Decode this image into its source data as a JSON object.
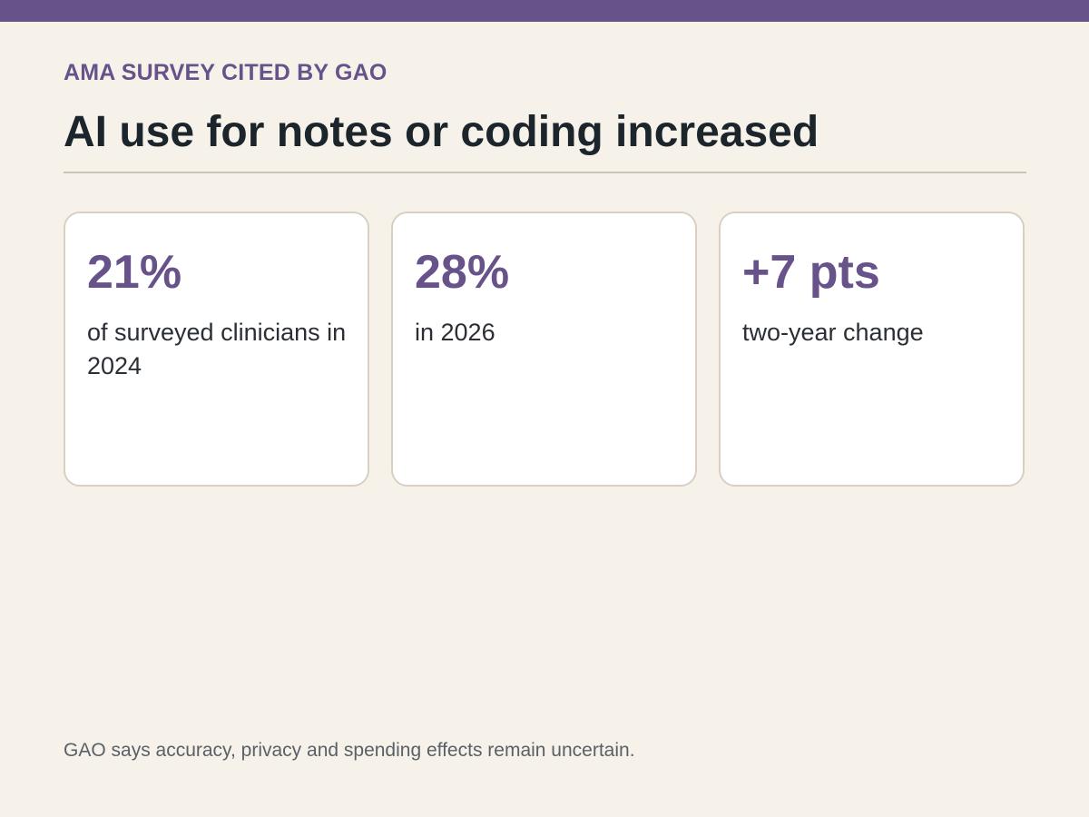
{
  "kicker": "AMA SURVEY CITED BY GAO",
  "headline": "AI use for notes or coding increased",
  "cards": [
    {
      "value": "21%",
      "description": "of surveyed clinicians in 2024"
    },
    {
      "value": "28%",
      "description": "in 2026"
    },
    {
      "value": "+7 pts",
      "description": "two-year change"
    }
  ],
  "footnote": "GAO says accuracy, privacy and spending effects remain uncertain.",
  "colors": {
    "accent": "#67528a",
    "background": "#f6f2ea",
    "card_border": "#d8d0c3",
    "headline_text": "#1c242c"
  }
}
